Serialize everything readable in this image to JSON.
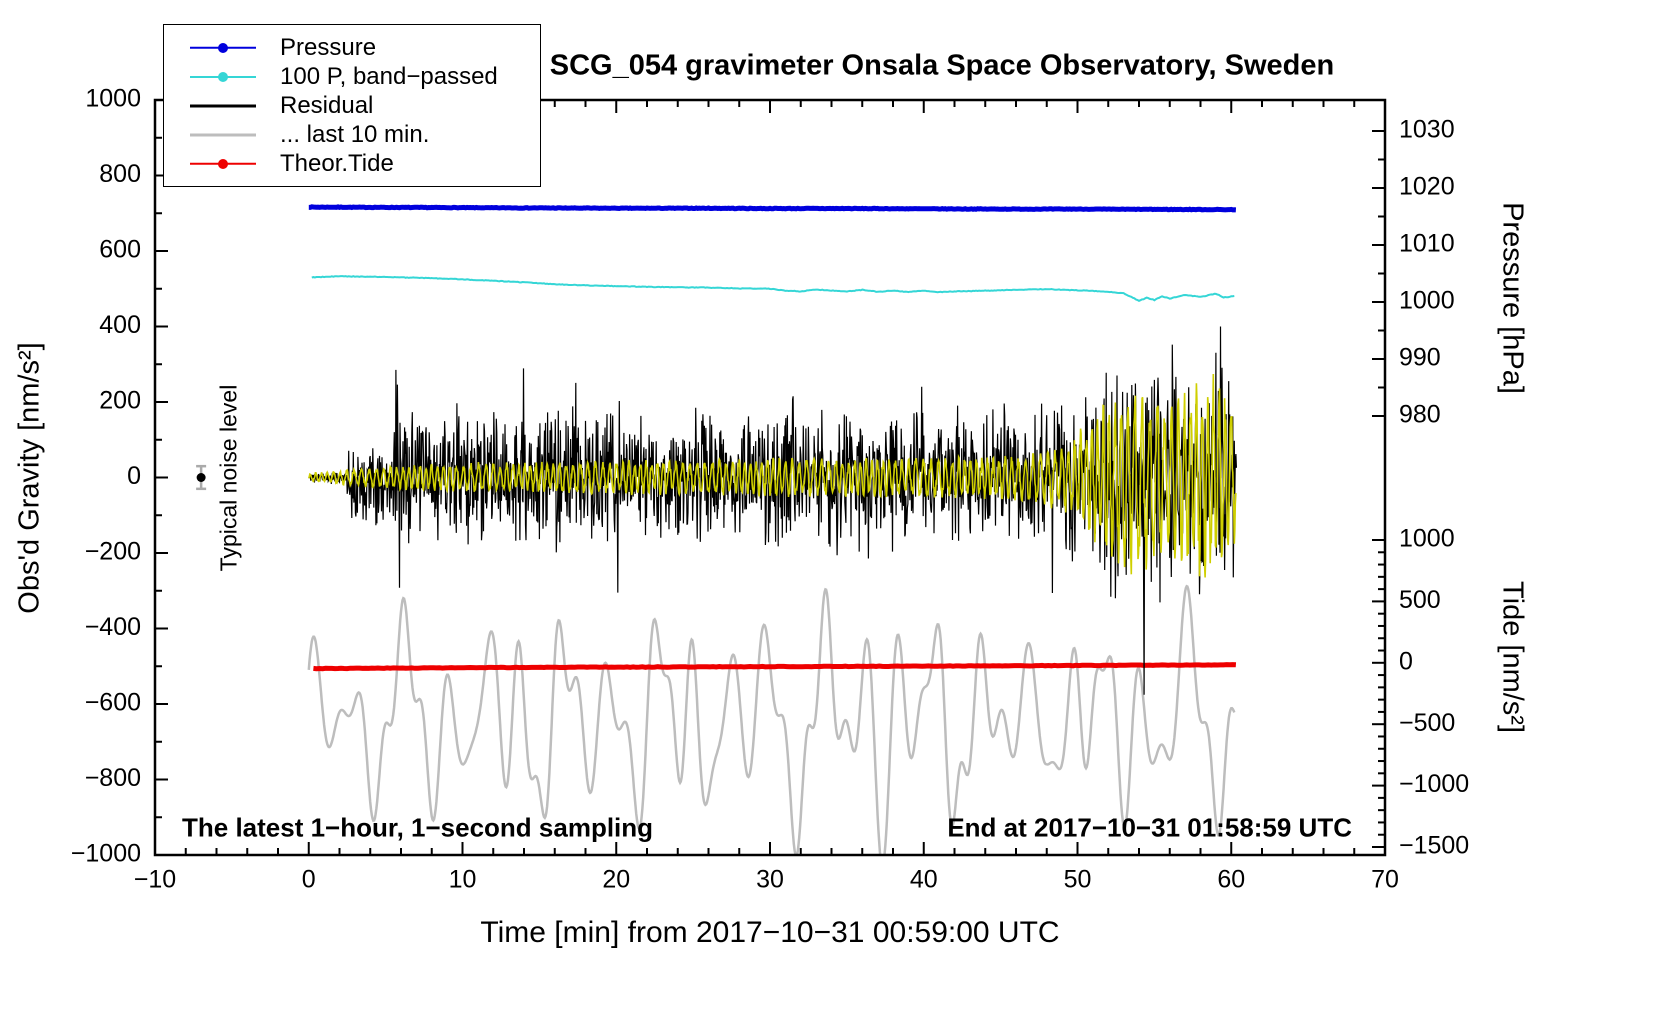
{
  "title": "SCG_054 gravimeter Onsala Space Observatory, Sweden",
  "annotations": {
    "noise_label": "Typical noise level",
    "bottom_left": "The latest 1−hour, 1−second sampling",
    "bottom_right": "End at 2017−10−31 01:58:59 UTC"
  },
  "axes": {
    "x": {
      "label": "Time [min] from 2017−10−31 00:59:00 UTC",
      "min": -10,
      "max": 70,
      "minor_step": 2,
      "major_ticks": [
        {
          "v": -10,
          "t": "−10"
        },
        {
          "v": 0,
          "t": "0"
        },
        {
          "v": 10,
          "t": "10"
        },
        {
          "v": 20,
          "t": "20"
        },
        {
          "v": 30,
          "t": "30"
        },
        {
          "v": 40,
          "t": "40"
        },
        {
          "v": 50,
          "t": "50"
        },
        {
          "v": 60,
          "t": "60"
        },
        {
          "v": 70,
          "t": "70"
        }
      ]
    },
    "gravity": {
      "label": "Obs'd Gravity [nm/s²]",
      "min": -1000,
      "max": 1000,
      "minor_step": 100,
      "major_ticks": [
        {
          "v": 1000,
          "t": "1000"
        },
        {
          "v": 800,
          "t": "800"
        },
        {
          "v": 600,
          "t": "600"
        },
        {
          "v": 400,
          "t": "400"
        },
        {
          "v": 200,
          "t": "200"
        },
        {
          "v": 0,
          "t": "0"
        },
        {
          "v": -200,
          "t": "−200"
        },
        {
          "v": -400,
          "t": "−400"
        },
        {
          "v": -600,
          "t": "−600"
        },
        {
          "v": -800,
          "t": "−800"
        },
        {
          "v": -1000,
          "t": "−1000"
        }
      ]
    },
    "pressure": {
      "label": "Pressure [hPa]",
      "minor_step": 5,
      "minor_range": [
        980,
        1030
      ],
      "major_ticks": [
        {
          "v": 1030,
          "t": "1030"
        },
        {
          "v": 1020,
          "t": "1020"
        },
        {
          "v": 1010,
          "t": "1010"
        },
        {
          "v": 1000,
          "t": "1000"
        },
        {
          "v": 990,
          "t": "990"
        },
        {
          "v": 980,
          "t": "980"
        }
      ]
    },
    "tide": {
      "label": "Tide [nm/s²]",
      "minor_step": 100,
      "minor_range": [
        -1500,
        1000
      ],
      "major_ticks": [
        {
          "v": 1000,
          "t": "1000"
        },
        {
          "v": 500,
          "t": "500"
        },
        {
          "v": 0,
          "t": "0"
        },
        {
          "v": -500,
          "t": "−500"
        },
        {
          "v": -1000,
          "t": "−1000"
        },
        {
          "v": -1500,
          "t": "−1500"
        }
      ]
    }
  },
  "legend": {
    "items": [
      {
        "label": "Pressure",
        "color": "#0000dd",
        "dot": true,
        "lw": 2.5
      },
      {
        "label": "100 P, band−passed",
        "color": "#35d6d6",
        "dot": true,
        "lw": 2
      },
      {
        "label": "Residual",
        "color": "#000000",
        "dot": false,
        "lw": 3
      },
      {
        "label": "... last 10 min.",
        "color": "#bdbdbd",
        "dot": false,
        "lw": 3
      },
      {
        "label": "Theor.Tide",
        "color": "#ee0000",
        "dot": true,
        "lw": 2.5
      }
    ]
  },
  "chart_data": {
    "type": "line",
    "title": "SCG_054 gravimeter Onsala Space Observatory, Sweden",
    "xlabel": "Time [min] from 2017−10−31 00:59:00 UTC",
    "x_range": [
      -10,
      70
    ],
    "left_axis": {
      "label": "Obs'd Gravity [nm/s²]",
      "range": [
        -1000,
        1000
      ]
    },
    "right_axes": [
      {
        "label": "Pressure [hPa]",
        "ticks": [
          1030,
          1020,
          1010,
          1000,
          990,
          980
        ]
      },
      {
        "label": "Tide [nm/s²]",
        "ticks": [
          1000,
          500,
          0,
          -500,
          -1000,
          -1500
        ]
      }
    ],
    "legend_position": "top-left",
    "grid": false,
    "noise_marker": {
      "x": -7,
      "value": 0,
      "error": 30
    },
    "series": [
      {
        "name": "... last 10 min.",
        "color": "#bdbdbd",
        "axis": "left",
        "width": 2.5,
        "kind": "smooth",
        "t0": 0,
        "t1": 60.2,
        "center": -640,
        "seed": 5,
        "envelope": [
          [
            0,
            200
          ],
          [
            4,
            260
          ],
          [
            8,
            300
          ],
          [
            12,
            280
          ],
          [
            16,
            320
          ],
          [
            20,
            330
          ],
          [
            24,
            300
          ],
          [
            28,
            280
          ],
          [
            32,
            320
          ],
          [
            36,
            360
          ],
          [
            40,
            300
          ],
          [
            44,
            330
          ],
          [
            48,
            200
          ],
          [
            52,
            280
          ],
          [
            56,
            340
          ],
          [
            60.2,
            260
          ]
        ],
        "components": [
          [
            0.55,
            2.7,
            13,
            1.2,
            0.4
          ],
          [
            0.3,
            1.45,
            9,
            0.9,
            2.1
          ],
          [
            0.3,
            5.6,
            0,
            0,
            0.7
          ]
        ]
      },
      {
        "name": "Theor.Tide",
        "color": "#ee0000",
        "axis": "left",
        "width": 5,
        "kind": "line",
        "step": 0.2,
        "jitter": 0.7,
        "seed": 3,
        "points": [
          [
            0.3,
            -506
          ],
          [
            15,
            -503
          ],
          [
            30,
            -501
          ],
          [
            45,
            -499
          ],
          [
            60.4,
            -496
          ]
        ]
      },
      {
        "name": "100 P, band−passed",
        "color": "#35d6d6",
        "axis": "left",
        "width": 2,
        "kind": "line",
        "step": 0.1,
        "jitter": 0.8,
        "seed": 9,
        "points": [
          [
            0.2,
            530
          ],
          [
            2,
            533
          ],
          [
            4,
            532
          ],
          [
            6,
            530
          ],
          [
            8,
            528
          ],
          [
            10,
            525
          ],
          [
            12,
            521
          ],
          [
            14,
            517
          ],
          [
            16,
            512
          ],
          [
            18,
            509
          ],
          [
            20,
            507
          ],
          [
            22,
            505
          ],
          [
            24,
            504
          ],
          [
            26,
            503
          ],
          [
            28,
            501
          ],
          [
            30,
            500
          ],
          [
            31,
            495
          ],
          [
            32,
            493
          ],
          [
            33,
            498
          ],
          [
            34,
            495
          ],
          [
            35,
            493
          ],
          [
            36,
            497
          ],
          [
            37,
            492
          ],
          [
            38,
            495
          ],
          [
            39,
            491
          ],
          [
            40,
            495
          ],
          [
            41,
            491
          ],
          [
            42,
            493
          ],
          [
            44,
            495
          ],
          [
            46,
            497
          ],
          [
            48,
            499
          ],
          [
            50,
            496
          ],
          [
            52,
            492
          ],
          [
            53,
            488
          ],
          [
            54,
            468
          ],
          [
            54.5,
            476
          ],
          [
            55,
            470
          ],
          [
            55.5,
            480
          ],
          [
            56,
            474
          ],
          [
            57,
            484
          ],
          [
            58,
            478
          ],
          [
            59,
            487
          ],
          [
            59.5,
            477
          ],
          [
            60.2,
            480
          ]
        ]
      },
      {
        "name": "Pressure",
        "color": "#0000dd",
        "axis": "pressure",
        "width": 5,
        "kind": "line",
        "step": 0.1,
        "jitter": 0.05,
        "seed": 7,
        "points": [
          [
            0,
            1016.65
          ],
          [
            5,
            1016.6
          ],
          [
            10,
            1016.55
          ],
          [
            15,
            1016.5
          ],
          [
            20,
            1016.45
          ],
          [
            25,
            1016.45
          ],
          [
            30,
            1016.4
          ],
          [
            35,
            1016.4
          ],
          [
            40,
            1016.35
          ],
          [
            45,
            1016.3
          ],
          [
            50,
            1016.3
          ],
          [
            55,
            1016.25
          ],
          [
            60.3,
            1016.2
          ]
        ]
      },
      {
        "name": "Residual",
        "color": "#000000",
        "axis": "left",
        "width": 1.2,
        "kind": "noise",
        "t0": 0,
        "t1": 60.35,
        "seed": 11,
        "envelope": [
          [
            0,
            12
          ],
          [
            2.4,
            14
          ],
          [
            2.55,
            105
          ],
          [
            4,
            88
          ],
          [
            5.4,
            100
          ],
          [
            5.7,
            180
          ],
          [
            7,
            150
          ],
          [
            12,
            148
          ],
          [
            20,
            152
          ],
          [
            28,
            145
          ],
          [
            36,
            148
          ],
          [
            44,
            148
          ],
          [
            47,
            158
          ],
          [
            49,
            180
          ],
          [
            51,
            215
          ],
          [
            52,
            245
          ],
          [
            53,
            260
          ],
          [
            55,
            250
          ],
          [
            57,
            258
          ],
          [
            59,
            272
          ],
          [
            60.35,
            210
          ]
        ],
        "spikes": [
          [
            5.65,
            285
          ],
          [
            5.9,
            -292
          ],
          [
            20.1,
            -305
          ],
          [
            31.5,
            215
          ],
          [
            59.3,
            400
          ],
          [
            59.55,
            -245
          ]
        ]
      },
      {
        "name": "Residual band−passed (overlay)",
        "color": "#cfcf00",
        "axis": "left",
        "width": 1.6,
        "kind": "osc",
        "t0": 0,
        "t1": 60.3,
        "seed": 23,
        "period": 0.42,
        "phase_mod": 2.6,
        "mod_period": 7.3,
        "envelope": [
          [
            0,
            9
          ],
          [
            4,
            22
          ],
          [
            8,
            30
          ],
          [
            12,
            32
          ],
          [
            16,
            34
          ],
          [
            20,
            36
          ],
          [
            24,
            36
          ],
          [
            28,
            40
          ],
          [
            32,
            42
          ],
          [
            36,
            40
          ],
          [
            40,
            42
          ],
          [
            44,
            44
          ],
          [
            47,
            52
          ],
          [
            49,
            70
          ],
          [
            50,
            95
          ],
          [
            51,
            130
          ],
          [
            52,
            165
          ],
          [
            53,
            195
          ],
          [
            54,
            205
          ],
          [
            55,
            175
          ],
          [
            56,
            160
          ],
          [
            57,
            188
          ],
          [
            58,
            205
          ],
          [
            59,
            215
          ],
          [
            60.3,
            130
          ]
        ]
      }
    ]
  }
}
